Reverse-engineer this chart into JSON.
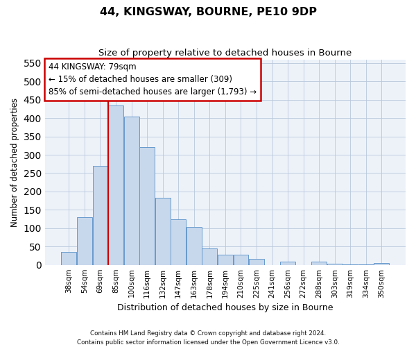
{
  "title": "44, KINGSWAY, BOURNE, PE10 9DP",
  "subtitle": "Size of property relative to detached houses in Bourne",
  "xlabel": "Distribution of detached houses by size in Bourne",
  "ylabel": "Number of detached properties",
  "footer_line1": "Contains HM Land Registry data © Crown copyright and database right 2024.",
  "footer_line2": "Contains public sector information licensed under the Open Government Licence v3.0.",
  "categories": [
    "38sqm",
    "54sqm",
    "69sqm",
    "85sqm",
    "100sqm",
    "116sqm",
    "132sqm",
    "147sqm",
    "163sqm",
    "178sqm",
    "194sqm",
    "210sqm",
    "225sqm",
    "241sqm",
    "256sqm",
    "272sqm",
    "288sqm",
    "303sqm",
    "319sqm",
    "334sqm",
    "350sqm"
  ],
  "values": [
    35,
    130,
    270,
    435,
    405,
    320,
    183,
    125,
    103,
    45,
    28,
    28,
    17,
    0,
    8,
    0,
    8,
    3,
    2,
    2,
    6
  ],
  "bar_color": "#c8d8ec",
  "bar_edge_color": "#6699cc",
  "ylim": [
    0,
    560
  ],
  "yticks": [
    0,
    50,
    100,
    150,
    200,
    250,
    300,
    350,
    400,
    450,
    500,
    550
  ],
  "red_line_index": 3,
  "annotation_line1": "44 KINGSWAY: 79sqm",
  "annotation_line2": "← 15% of detached houses are smaller (309)",
  "annotation_line3": "85% of semi-detached houses are larger (1,793) →",
  "annotation_box_facecolor": "#ffffff",
  "annotation_box_edgecolor": "#cc0000",
  "bg_color": "#edf2f9",
  "grid_color": "#b8c8dc"
}
